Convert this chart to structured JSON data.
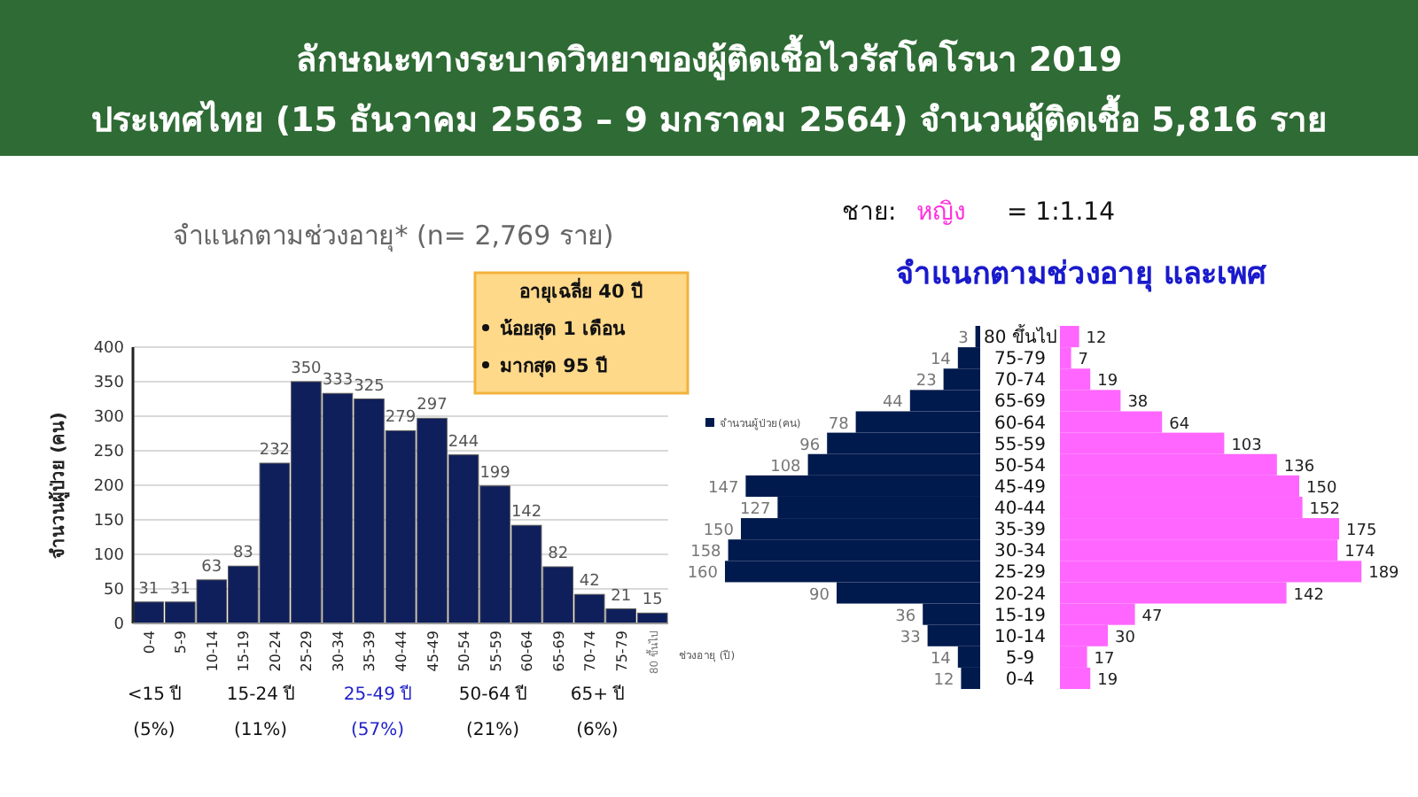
{
  "chart_data": [
    {
      "type": "bar",
      "title": "จำแนกตามช่วงอายุ* (n= 2,769 ราย)",
      "xlabel": "ช่วงอายุ (ปี)",
      "ylabel": "จำนวนผู้ป่วย (คน)",
      "categories": [
        "0-4",
        "5-9",
        "10-14",
        "15-19",
        "20-24",
        "25-29",
        "30-34",
        "35-39",
        "40-44",
        "45-49",
        "50-54",
        "55-59",
        "60-64",
        "65-69",
        "70-74",
        "75-79",
        "80 ขึ้นไป"
      ],
      "values": [
        31,
        31,
        63,
        83,
        232,
        350,
        333,
        325,
        279,
        297,
        244,
        199,
        142,
        82,
        42,
        21,
        15
      ],
      "color": "#0f1f5c",
      "ylim": [
        0,
        400
      ],
      "yticks": [
        0,
        50,
        100,
        150,
        200,
        250,
        300,
        350,
        400
      ],
      "grid": "y",
      "data_labels": true,
      "annotations": [
        "ลักษณะทางระบาดวิทยาของผู้ติดเชื้อไวรัสโคโรนา 2019",
        "ประเทศไทย (15 ธันวาคม 2563 – 9 มกราคม 2564) จำนวนผู้ติดเชื้อ 5,816 ราย",
        "อายุเฉลี่ย  40 ปี",
        "น้อยสุด  1 เดือน",
        "มากสุด 95 ปี",
        "<15 ปี",
        "(5%)",
        "15-24 ปี",
        "(11%)",
        "25-49 ปี",
        "(57%)",
        "50-64 ปี",
        "(21%)",
        "65+ ปี",
        "(6%)"
      ]
    },
    {
      "type": "bar",
      "orientation": "horizontal",
      "legend": "left",
      "categories": [
        "80 ขึ้นไป",
        "75-79",
        "70-74",
        "65-69",
        "60-64",
        "55-59",
        "50-54",
        "45-49",
        "40-44",
        "35-39",
        "30-34",
        "25-29",
        "20-24",
        "15-19",
        "10-14",
        "5-9",
        "0-4"
      ],
      "series": [
        {
          "name": "จำนวนผู้ป่วย(คน)",
          "color": "#001a4d",
          "values": [
            3,
            14,
            23,
            44,
            78,
            96,
            108,
            147,
            127,
            150,
            158,
            160,
            90,
            36,
            33,
            14,
            12
          ]
        }
      ],
      "data_labels": true
    },
    {
      "type": "bar",
      "orientation": "horizontal",
      "title": "จำแนกตามช่วงอายุ และเพศ",
      "categories": [
        null,
        null,
        null,
        null,
        null,
        null,
        null,
        null,
        null,
        null,
        null,
        null,
        null,
        null,
        null,
        null,
        null
      ],
      "series": [
        {
          "color": "#ff66ff",
          "values": [
            12,
            7,
            19,
            38,
            64,
            103,
            136,
            150,
            152,
            175,
            174,
            189,
            142,
            47,
            30,
            17,
            19
          ]
        }
      ],
      "data_labels": true,
      "annotations": [
        "ชาย:",
        "หญิง",
        "= 1:1.14"
      ]
    }
  ]
}
